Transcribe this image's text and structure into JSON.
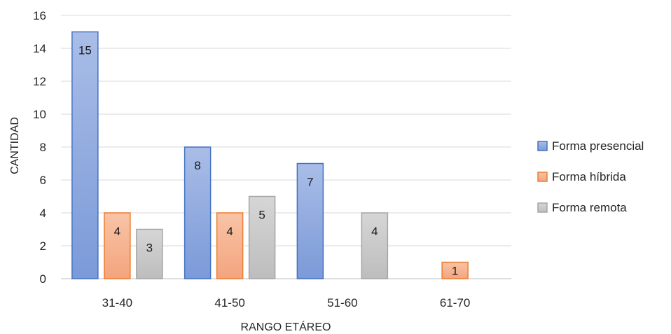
{
  "chart_data": {
    "type": "bar",
    "title": "",
    "xlabel": "RANGO ETÁREO",
    "ylabel": "CANTIDAD",
    "categories": [
      "31-40",
      "41-50",
      "51-60",
      "61-70"
    ],
    "ylim": [
      0,
      16
    ],
    "yticks": [
      0,
      2,
      4,
      6,
      8,
      10,
      12,
      14,
      16
    ],
    "grid": true,
    "legend_position": "right",
    "series": [
      {
        "name": "Forma presencial",
        "values": [
          15,
          8,
          7,
          0
        ],
        "color": "#4472c4"
      },
      {
        "name": "Forma híbrida",
        "values": [
          4,
          4,
          0,
          1
        ],
        "color": "#ed7d31"
      },
      {
        "name": "Forma remota",
        "values": [
          3,
          5,
          4,
          0
        ],
        "color": "#a5a5a5"
      }
    ]
  }
}
